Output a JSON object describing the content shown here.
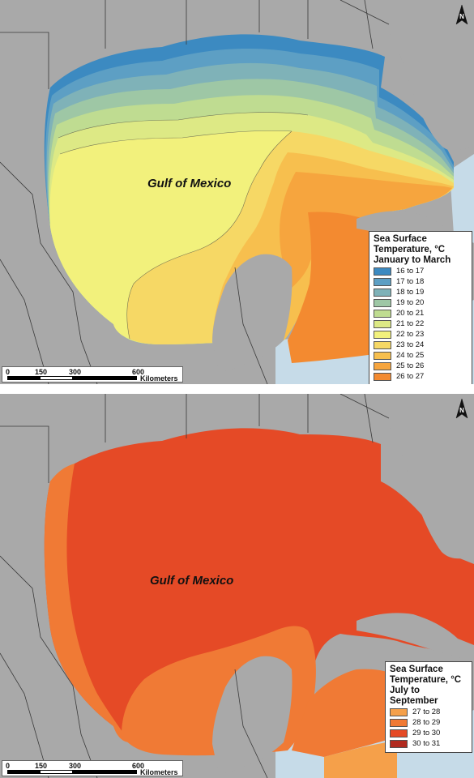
{
  "colors": {
    "land": "#a9a9a9",
    "border": "#3a3a3a",
    "shallow": "#bcd6e6"
  },
  "panels": [
    {
      "id": "winter",
      "label": "Gulf of Mexico",
      "legend": {
        "title_lines": [
          "Sea Surface",
          "Temperature, °C",
          "January to March"
        ],
        "items": [
          {
            "label": "16 to 17",
            "color": "#3c8ac1"
          },
          {
            "label": "17 to 18",
            "color": "#5d9fc4"
          },
          {
            "label": "18 to 19",
            "color": "#7fb2b8"
          },
          {
            "label": "19 to 20",
            "color": "#9ec7a5"
          },
          {
            "label": "20 to 21",
            "color": "#bfdc91"
          },
          {
            "label": "21 to 22",
            "color": "#dde985"
          },
          {
            "label": "22 to 23",
            "color": "#f2f17c"
          },
          {
            "label": "23 to 24",
            "color": "#f6d865"
          },
          {
            "label": "24 to 25",
            "color": "#f7bf4e"
          },
          {
            "label": "25 to 26",
            "color": "#f6a53e"
          },
          {
            "label": "26 to 27",
            "color": "#f38a30"
          }
        ]
      },
      "scale": {
        "ticks": [
          "0",
          "150",
          "300",
          "600"
        ],
        "unit": "Kilometers"
      }
    },
    {
      "id": "summer",
      "label": "Gulf of Mexico",
      "legend": {
        "title_lines": [
          "Sea Surface",
          "Temperature, °C",
          "July to September"
        ],
        "items": [
          {
            "label": "27 to 28",
            "color": "#f5a04a"
          },
          {
            "label": "28 to 29",
            "color": "#f07a35"
          },
          {
            "label": "29 to 30",
            "color": "#e54a26"
          },
          {
            "label": "30 to 31",
            "color": "#b02a1f"
          }
        ]
      },
      "scale": {
        "ticks": [
          "0",
          "150",
          "300",
          "600"
        ],
        "unit": "Kilometers"
      }
    }
  ]
}
